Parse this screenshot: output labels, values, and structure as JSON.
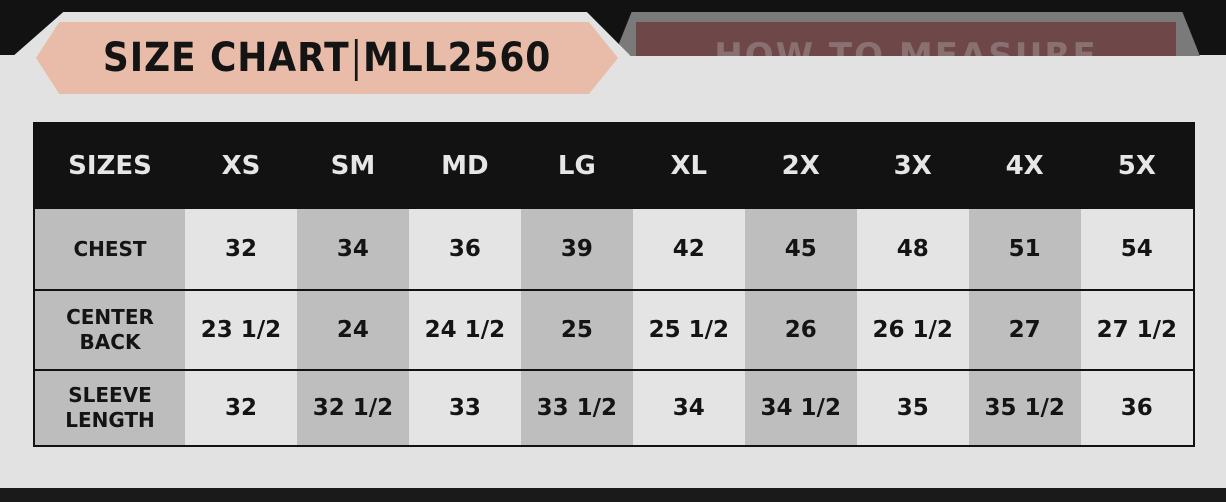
{
  "title": {
    "left": "SIZE CHART",
    "right": "MLL2560"
  },
  "secondary_tab": "HOW TO MEASURE",
  "table": {
    "headers": [
      "SIZES",
      "XS",
      "SM",
      "MD",
      "LG",
      "XL",
      "2X",
      "3X",
      "4X",
      "5X"
    ],
    "rows": [
      {
        "label": [
          "CHEST"
        ],
        "values": [
          "32",
          "34",
          "36",
          "39",
          "42",
          "45",
          "48",
          "51",
          "54"
        ]
      },
      {
        "label": [
          "CENTER",
          "BACK"
        ],
        "values": [
          "23 1/2",
          "24",
          "24 1/2",
          "25",
          "25 1/2",
          "26",
          "26 1/2",
          "27",
          "27 1/2"
        ]
      },
      {
        "label": [
          "SLEEVE",
          "LENGTH"
        ],
        "values": [
          "32",
          "32 1/2",
          "33",
          "33 1/2",
          "34",
          "34 1/2",
          "35",
          "35 1/2",
          "36"
        ]
      }
    ]
  },
  "colors": {
    "title_tab": "#e8bca8",
    "secondary_tab": "#6e4848",
    "header_bg": "#121212",
    "background": "#e2e2e2"
  }
}
